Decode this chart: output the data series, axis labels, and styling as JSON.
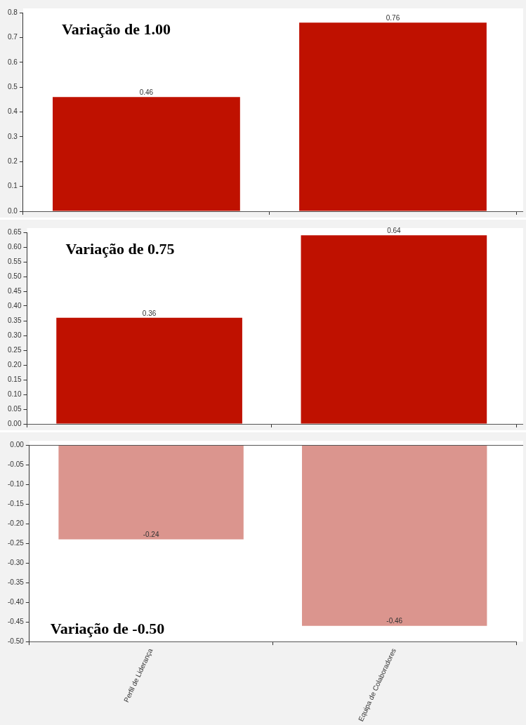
{
  "chart_data": [
    {
      "type": "bar",
      "title": "Variação de 1.00",
      "categories": [
        null,
        null
      ],
      "values": [
        0.46,
        0.76
      ],
      "color": "#bf1100",
      "ylim": [
        0,
        0.8
      ],
      "yticks": [
        {
          "value": 0,
          "label": "0.0"
        },
        0.1,
        0.2,
        0.3,
        0.4,
        0.5,
        0.6,
        0.7,
        0.8
      ],
      "data_labels": true,
      "tick_labels": "y"
    },
    {
      "type": "bar",
      "title": "Variação de 0.75",
      "categories": [
        null,
        null
      ],
      "values": [
        0.36,
        0.64
      ],
      "color": "#bf1100",
      "ylim": [
        0,
        0.65
      ],
      "yticks": [
        {
          "value": 0,
          "label": "0.00"
        },
        {
          "value": 0.05,
          "label": "0.05"
        },
        {
          "value": 0.1,
          "label": "0.10"
        },
        {
          "value": 0.15,
          "label": "0.15"
        },
        {
          "value": 0.2,
          "label": "0.20"
        },
        {
          "value": 0.25,
          "label": "0.25"
        },
        {
          "value": 0.3,
          "label": "0.30"
        },
        {
          "value": 0.35,
          "label": "0.35"
        },
        {
          "value": 0.4,
          "label": "0.40"
        },
        {
          "value": 0.45,
          "label": "0.45"
        },
        {
          "value": 0.5,
          "label": "0.50"
        },
        {
          "value": 0.55,
          "label": "0.55"
        },
        {
          "value": 0.6,
          "label": "0.60"
        },
        {
          "value": 0.65,
          "label": "0.65"
        }
      ],
      "data_labels": true,
      "tick_labels": "y"
    },
    {
      "type": "bar",
      "title": "Variação de -0.50",
      "categories": [
        "Perfil de Liderança",
        "Equipa de Colaboradores"
      ],
      "values": [
        -0.24,
        -0.46
      ],
      "color": "#db958e",
      "ylim": [
        -0.5,
        0
      ],
      "yticks": [
        {
          "value": -0.5,
          "label": "-0.50"
        },
        {
          "value": -0.45,
          "label": "-0.45"
        },
        {
          "value": -0.4,
          "label": "-0.40"
        },
        {
          "value": -0.35,
          "label": "-0.35"
        },
        {
          "value": -0.3,
          "label": "-0.30"
        },
        {
          "value": -0.25,
          "label": "-0.25"
        },
        {
          "value": -0.2,
          "label": "-0.20"
        },
        {
          "value": -0.15,
          "label": "-0.15"
        },
        {
          "value": -0.1,
          "label": "-0.10"
        },
        {
          "value": -0.05,
          "label": "-0.05"
        },
        {
          "value": 0,
          "label": "0.00"
        }
      ],
      "data_labels": true
    }
  ]
}
